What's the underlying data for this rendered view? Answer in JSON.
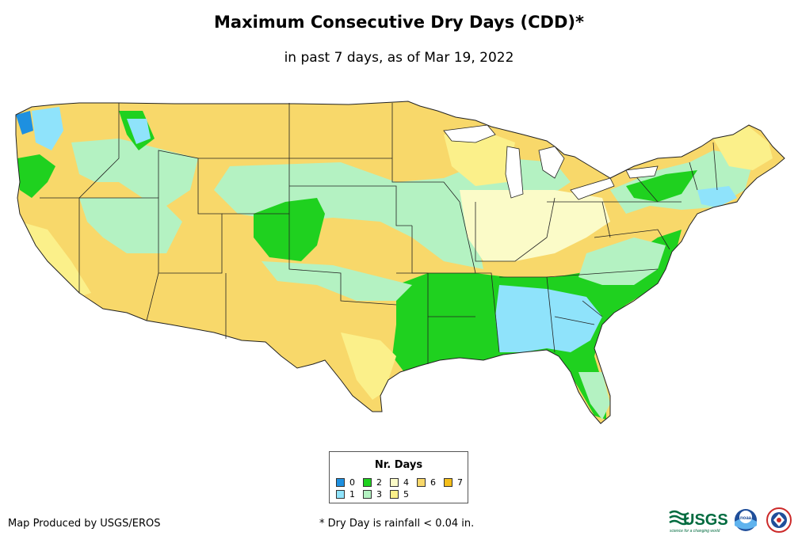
{
  "title": "Maximum Consecutive Dry Days (CDD)*",
  "subtitle": "in past 7 days, as of Mar 19, 2022",
  "legend": {
    "title": "Nr. Days",
    "items": [
      {
        "label": "0",
        "color": "#1e90e0"
      },
      {
        "label": "1",
        "color": "#8fe3fb"
      },
      {
        "label": "2",
        "color": "#1fd11f"
      },
      {
        "label": "3",
        "color": "#b4f2c2"
      },
      {
        "label": "4",
        "color": "#fbfbc8"
      },
      {
        "label": "5",
        "color": "#fbf08a"
      },
      {
        "label": "6",
        "color": "#f8d86a"
      },
      {
        "label": "7",
        "color": "#f5bf1a"
      }
    ]
  },
  "credit": "Map Produced by USGS/EROS",
  "footnote": "* Dry Day is rainfall < 0.04 in.",
  "logos": {
    "usgs": "USGS",
    "usgs_tagline": "science for a changing world",
    "noaa": "noaa"
  }
}
